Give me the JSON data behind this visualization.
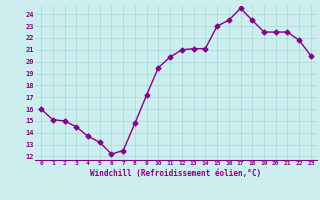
{
  "x": [
    0,
    1,
    2,
    3,
    4,
    5,
    6,
    7,
    8,
    9,
    10,
    11,
    12,
    13,
    14,
    15,
    16,
    17,
    18,
    19,
    20,
    21,
    22,
    23
  ],
  "y": [
    16.0,
    15.1,
    15.0,
    14.5,
    13.7,
    13.2,
    12.2,
    12.5,
    14.8,
    17.2,
    19.5,
    20.4,
    21.0,
    21.1,
    21.1,
    23.0,
    23.5,
    24.5,
    23.5,
    22.5,
    22.5,
    22.5,
    21.8,
    20.5
  ],
  "line_color": "#880088",
  "marker": "D",
  "markersize": 2.5,
  "linewidth": 1.0,
  "bg_color": "#cceeee",
  "grid_color": "#aadddd",
  "xlabel": "Windchill (Refroidissement éolien,°C)",
  "tick_color": "#880088",
  "ylim": [
    12,
    24.5
  ],
  "xlim": [
    -0.5,
    23.5
  ],
  "yticks": [
    12,
    13,
    14,
    15,
    16,
    17,
    18,
    19,
    20,
    21,
    22,
    23,
    24
  ],
  "xticks": [
    0,
    1,
    2,
    3,
    4,
    5,
    6,
    7,
    8,
    9,
    10,
    11,
    12,
    13,
    14,
    15,
    16,
    17,
    18,
    19,
    20,
    21,
    22,
    23
  ],
  "figsize": [
    3.2,
    2.0
  ],
  "dpi": 100
}
